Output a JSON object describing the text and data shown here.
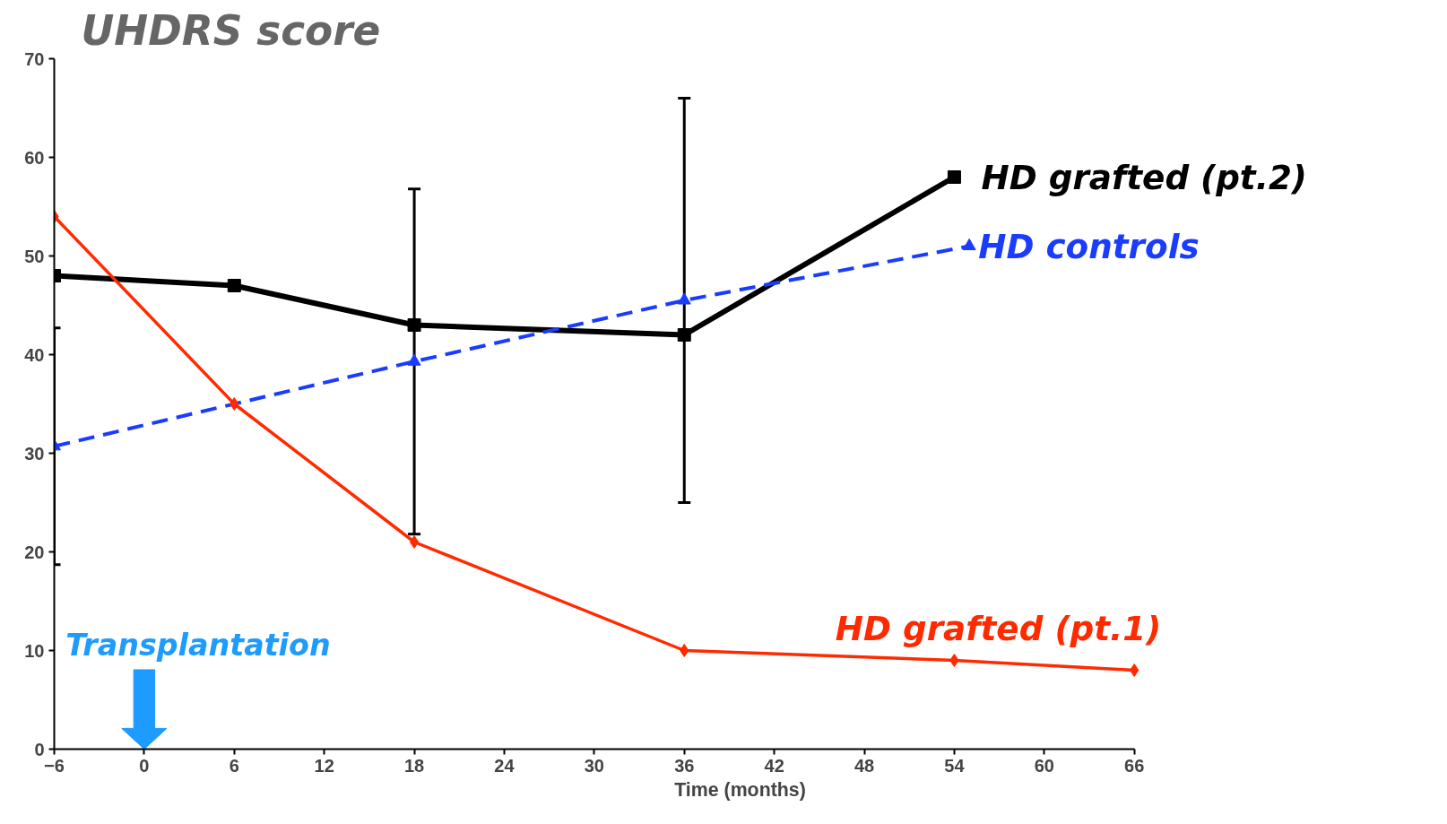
{
  "chart_data": {
    "type": "line",
    "title": "UHDRS score",
    "xlabel": "Time (months)",
    "xlim": [
      -6,
      66
    ],
    "xticks": [
      -6,
      0,
      6,
      12,
      18,
      24,
      30,
      36,
      42,
      48,
      54,
      60,
      66
    ],
    "ylim": [
      0,
      70
    ],
    "yticks": [
      0,
      10,
      20,
      30,
      40,
      50,
      60,
      70
    ],
    "grid": false,
    "annotations": [
      "Transplantation"
    ],
    "series": [
      {
        "name": "HD grafted (pt.2)",
        "color": "#000000",
        "x": [
          -6,
          6,
          18,
          36,
          54
        ],
        "values": [
          48,
          47,
          43,
          42,
          58
        ],
        "marker": "square",
        "line_style": "solid"
      },
      {
        "name": "HD controls",
        "color": "#1a3cff",
        "x": [
          -6,
          18,
          36,
          55
        ],
        "values": [
          30.7,
          39.3,
          45.5,
          51
        ],
        "errors": [
          12,
          17.5,
          20.5,
          null
        ],
        "marker": "triangle",
        "line_style": "dashed"
      },
      {
        "name": "HD grafted (pt.1)",
        "color": "#ff2a00",
        "x": [
          -6,
          6,
          18,
          36,
          54,
          66
        ],
        "values": [
          54,
          35,
          21,
          10,
          9,
          8
        ],
        "marker": "diamond",
        "line_style": "solid"
      }
    ]
  }
}
